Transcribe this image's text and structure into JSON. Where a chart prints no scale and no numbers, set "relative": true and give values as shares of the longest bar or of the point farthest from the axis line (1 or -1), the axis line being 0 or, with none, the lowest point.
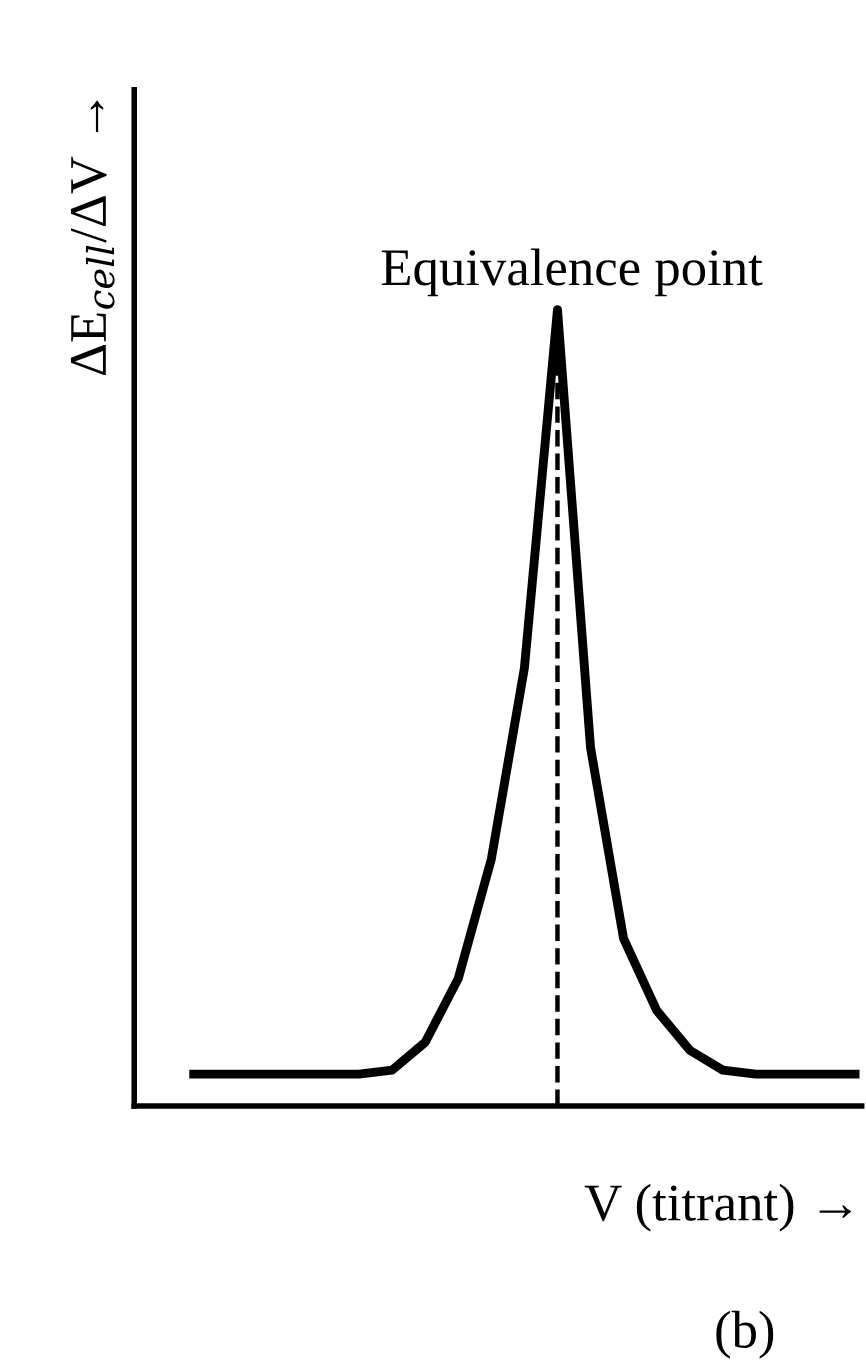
{
  "chart_data": {
    "type": "line",
    "relative": true,
    "categories": [
      null,
      null,
      null,
      null,
      null,
      null,
      null,
      null,
      null,
      null,
      null,
      null,
      null,
      null,
      null,
      null,
      null,
      null,
      null,
      null,
      null
    ],
    "series": [
      {
        "color": "#000000",
        "values": [
          0.04,
          0.04,
          0.04,
          0.04,
          0.04,
          0.04,
          0.045,
          0.08,
          0.16,
          0.31,
          0.55,
          1,
          0.45,
          0.21,
          0.12,
          0.07,
          0.045,
          0.04,
          0.04,
          0.04,
          0.04
        ]
      }
    ],
    "xlabel": "V (titrant) →",
    "ylabel": "ΔE$_{cell}$/ΔV →",
    "annotations": [
      "Equivalence point",
      "(b)"
    ],
    "legend": false,
    "marker": "none",
    "line_style": "solid"
  }
}
